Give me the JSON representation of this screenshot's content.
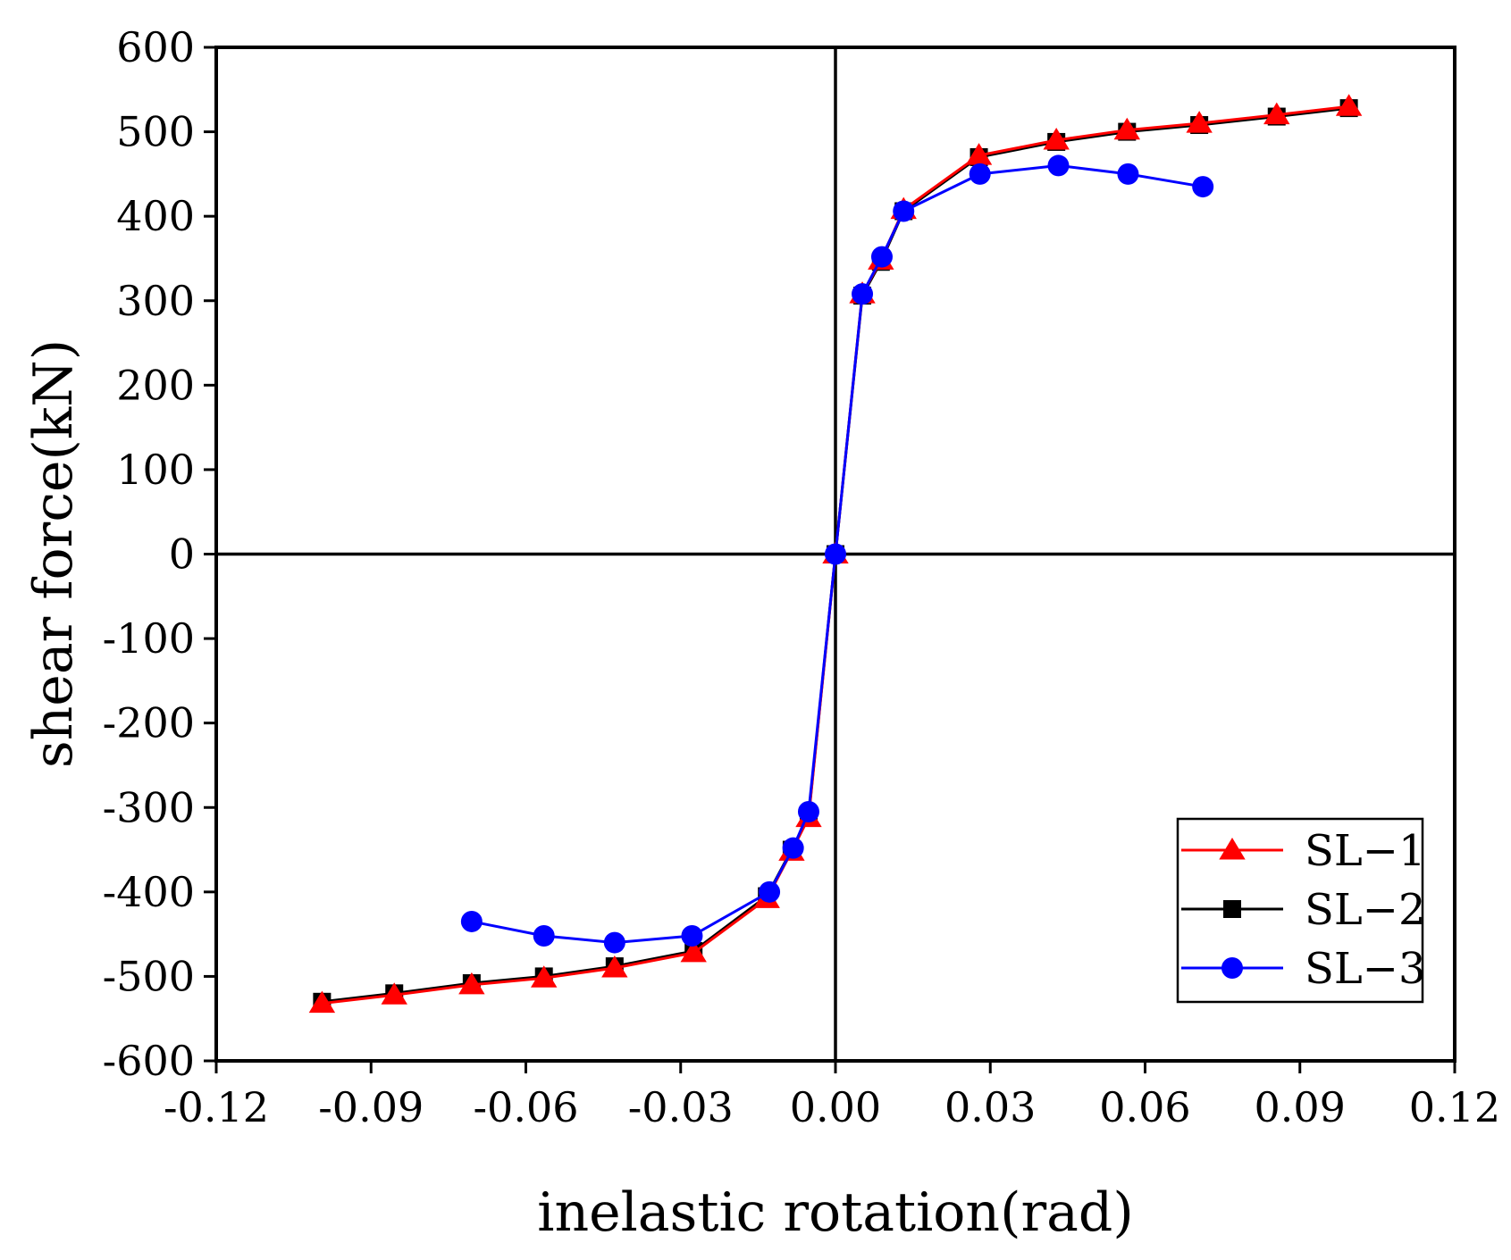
{
  "chart_data": {
    "type": "line",
    "xlabel": "inelastic rotation(rad)",
    "ylabel": "shear force(kN)",
    "xlim": [
      -0.12,
      0.12
    ],
    "ylim": [
      -600,
      600
    ],
    "x_ticks": [
      -0.12,
      -0.09,
      -0.06,
      -0.03,
      0.0,
      0.03,
      0.06,
      0.09,
      0.12
    ],
    "x_tick_labels": [
      "-0.12",
      "-0.09",
      "-0.06",
      "-0.03",
      "0.00",
      "0.03",
      "0.06",
      "0.09",
      "0.12"
    ],
    "y_ticks": [
      600,
      500,
      400,
      300,
      200,
      100,
      0,
      -100,
      -200,
      -300,
      -400,
      -500,
      -600
    ],
    "y_tick_labels": [
      "600",
      "500",
      "400",
      "300",
      "200",
      "100",
      "0",
      "-100",
      "-200",
      "-300",
      "-400",
      "-500",
      "-600"
    ],
    "grid": false,
    "zero_lines": true,
    "legend_position": "bottom-right",
    "series": [
      {
        "name": "SL−1",
        "color": "#ff0000",
        "marker": "triangle",
        "x": [
          -0.0995,
          -0.0855,
          -0.0705,
          -0.0565,
          -0.0428,
          -0.0275,
          -0.0133,
          -0.0085,
          -0.0052,
          0.0,
          0.0052,
          0.0088,
          0.0132,
          0.0278,
          0.0428,
          0.0565,
          0.0705,
          0.0855,
          0.0995
        ],
        "y": [
          -532,
          -522,
          -510,
          -502,
          -490,
          -472,
          -408,
          -352,
          -312,
          0,
          308,
          348,
          408,
          472,
          490,
          502,
          510,
          520,
          530
        ]
      },
      {
        "name": "SL−2",
        "color": "#000000",
        "marker": "square",
        "x": [
          -0.0995,
          -0.0855,
          -0.0705,
          -0.0565,
          -0.0428,
          -0.0275,
          -0.0133,
          -0.0085,
          -0.0052,
          0.0,
          0.0052,
          0.0088,
          0.0132,
          0.0278,
          0.0428,
          0.0565,
          0.0705,
          0.0855,
          0.0995
        ],
        "y": [
          -530,
          -520,
          -508,
          -500,
          -488,
          -470,
          -405,
          -350,
          -310,
          0,
          306,
          346,
          406,
          470,
          488,
          500,
          508,
          518,
          528
        ]
      },
      {
        "name": "SL−3",
        "color": "#0000ff",
        "marker": "circle",
        "x": [
          -0.0705,
          -0.0565,
          -0.0428,
          -0.0278,
          -0.0128,
          -0.0082,
          -0.0052,
          0.0,
          0.0052,
          0.009,
          0.0132,
          0.028,
          0.0432,
          0.0567,
          0.0712
        ],
        "y": [
          -435,
          -452,
          -460,
          -452,
          -400,
          -348,
          -305,
          0,
          308,
          352,
          406,
          450,
          460,
          450,
          435
        ]
      }
    ]
  }
}
